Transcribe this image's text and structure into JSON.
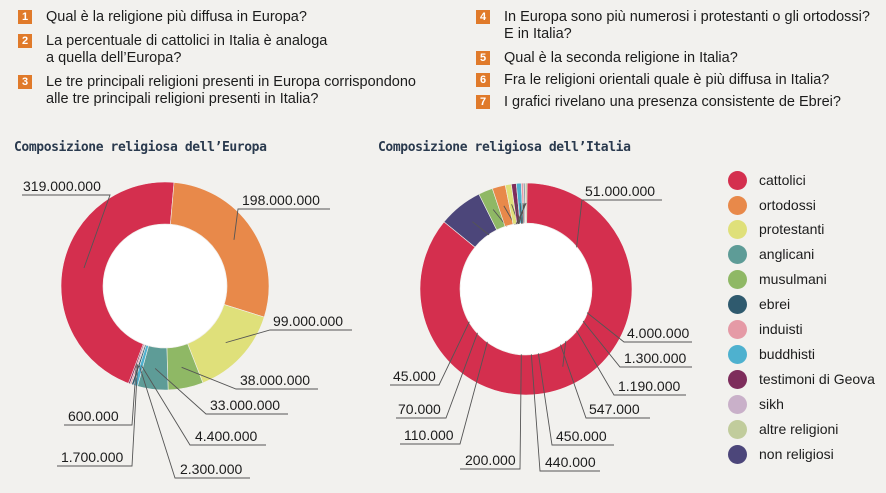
{
  "questions": [
    {
      "num": "1",
      "text": "Qual è la religione più diffusa in Europa?"
    },
    {
      "num": "2",
      "text": "La percentuale di cattolici in Italia è analoga\na quella dell’Europa?"
    },
    {
      "num": "3",
      "text": "Le tre principali religioni presenti in Europa corrispondono\nalle tre principali religioni presenti in Italia?"
    },
    {
      "num": "4",
      "text": "In Europa sono più numerosi i protestanti o gli ortodossi?\nE in Italia?"
    },
    {
      "num": "5",
      "text": "Qual è la seconda religione in Italia?"
    },
    {
      "num": "6",
      "text": "Fra le religioni orientali quale è più diffusa in Italia?"
    },
    {
      "num": "7",
      "text": "I grafici rivelano una presenza consistente de Ebrei?"
    }
  ],
  "legend": [
    {
      "label": "cattolici",
      "color": "#d42f4e"
    },
    {
      "label": "ortodossi",
      "color": "#e8894a"
    },
    {
      "label": "protestanti",
      "color": "#dfe07a"
    },
    {
      "label": "anglicani",
      "color": "#5e9c97"
    },
    {
      "label": "musulmani",
      "color": "#8fb865"
    },
    {
      "label": "ebrei",
      "color": "#2f5a6e"
    },
    {
      "label": "induisti",
      "color": "#e59aa6"
    },
    {
      "label": "buddhisti",
      "color": "#4eb1cf"
    },
    {
      "label": "testimoni di Geova",
      "color": "#7e2d5c"
    },
    {
      "label": "sikh",
      "color": "#c9b0c9"
    },
    {
      "label": "altre religioni",
      "color": "#c1cc9c"
    },
    {
      "label": "non religiosi",
      "color": "#4c467a"
    }
  ],
  "chart_data": [
    {
      "type": "pie",
      "title": "Composizione religiosa dell’Europa",
      "slices": [
        {
          "name": "cattolici",
          "value": 319000000,
          "label": "319.000.000"
        },
        {
          "name": "ortodossi",
          "value": 198000000,
          "label": "198.000.000"
        },
        {
          "name": "protestanti",
          "value": 99000000,
          "label": "99.000.000"
        },
        {
          "name": "musulmani",
          "value": 38000000,
          "label": "38.000.000"
        },
        {
          "name": "anglicani",
          "value": 33000000,
          "label": "33.000.000"
        },
        {
          "name": "buddhisti",
          "value": 4400000,
          "label": "4.400.000"
        },
        {
          "name": "ebrei",
          "value": 2300000,
          "label": "2.300.000"
        },
        {
          "name": "induisti",
          "value": 1700000,
          "label": "1.700.000"
        },
        {
          "name": "testimoni di Geova",
          "value": 600000,
          "label": "600.000"
        }
      ]
    },
    {
      "type": "pie",
      "title": "Composizione religiosa dell’Italia",
      "slices": [
        {
          "name": "cattolici",
          "value": 51000000,
          "label": "51.000.000"
        },
        {
          "name": "non religiosi",
          "value": 4000000,
          "label": "4.000.000"
        },
        {
          "name": "musulmani",
          "value": 1300000,
          "label": "1.300.000"
        },
        {
          "name": "ortodossi",
          "value": 1190000,
          "label": "1.190.000"
        },
        {
          "name": "protestanti",
          "value": 547000,
          "label": "547.000"
        },
        {
          "name": "testimoni di Geova",
          "value": 450000,
          "label": "450.000"
        },
        {
          "name": "buddhisti",
          "value": 440000,
          "label": "440.000"
        },
        {
          "name": "induisti",
          "value": 200000,
          "label": "200.000"
        },
        {
          "name": "ebrei",
          "value": 110000,
          "label": "110.000"
        },
        {
          "name": "sikh",
          "value": 70000,
          "label": "70.000"
        },
        {
          "name": "altre religioni",
          "value": 45000,
          "label": "45.000"
        }
      ]
    }
  ]
}
